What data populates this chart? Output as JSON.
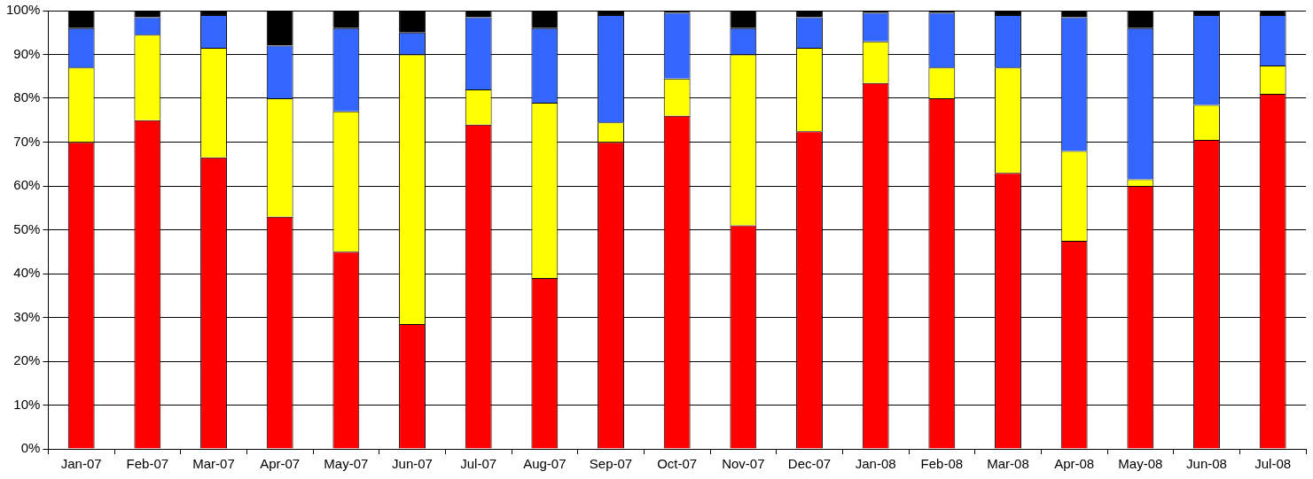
{
  "chart_data": {
    "type": "bar",
    "stacked": true,
    "categories": [
      "Jan-07",
      "Feb-07",
      "Mar-07",
      "Apr-07",
      "May-07",
      "Jun-07",
      "Jul-07",
      "Aug-07",
      "Sep-07",
      "Oct-07",
      "Nov-07",
      "Dec-07",
      "Jan-08",
      "Feb-08",
      "Mar-08",
      "Apr-08",
      "May-08",
      "Jun-08",
      "Jul-08"
    ],
    "series": [
      {
        "color": "#ff0000",
        "values": [
          70,
          75,
          66.5,
          53,
          45,
          28.5,
          74,
          39,
          70,
          76,
          51,
          72.5,
          83.5,
          80,
          63,
          47.5,
          60,
          70.5,
          81
        ]
      },
      {
        "color": "#ffff00",
        "values": [
          17,
          19.5,
          25,
          27,
          32,
          61.5,
          8,
          40,
          4.5,
          8.5,
          39,
          19,
          9.5,
          7,
          24,
          20.5,
          1.5,
          8,
          6.5
        ]
      },
      {
        "color": "#3366ff",
        "values": [
          9,
          4,
          7.5,
          12,
          19,
          5,
          16.5,
          17,
          24.5,
          15,
          6,
          7,
          6.5,
          12.5,
          12,
          30.5,
          34.5,
          20.5,
          11.5
        ]
      },
      {
        "color": "#000000",
        "values": [
          4,
          1.5,
          1,
          8,
          4,
          5,
          1.5,
          4,
          1,
          0.5,
          4,
          1.5,
          0.5,
          0.5,
          1,
          1.5,
          4,
          1,
          1
        ]
      }
    ],
    "ylim": [
      0,
      100
    ],
    "yticks": [
      {
        "value": 0,
        "label": "0%"
      },
      {
        "value": 10,
        "label": "10%"
      },
      {
        "value": 20,
        "label": "20%"
      },
      {
        "value": 30,
        "label": "30%"
      },
      {
        "value": 40,
        "label": "40%"
      },
      {
        "value": 50,
        "label": "50%"
      },
      {
        "value": 60,
        "label": "60%"
      },
      {
        "value": 70,
        "label": "70%"
      },
      {
        "value": 80,
        "label": "80%"
      },
      {
        "value": 90,
        "label": "90%"
      },
      {
        "value": 100,
        "label": "100%"
      }
    ],
    "grid": "y",
    "legend": false
  }
}
